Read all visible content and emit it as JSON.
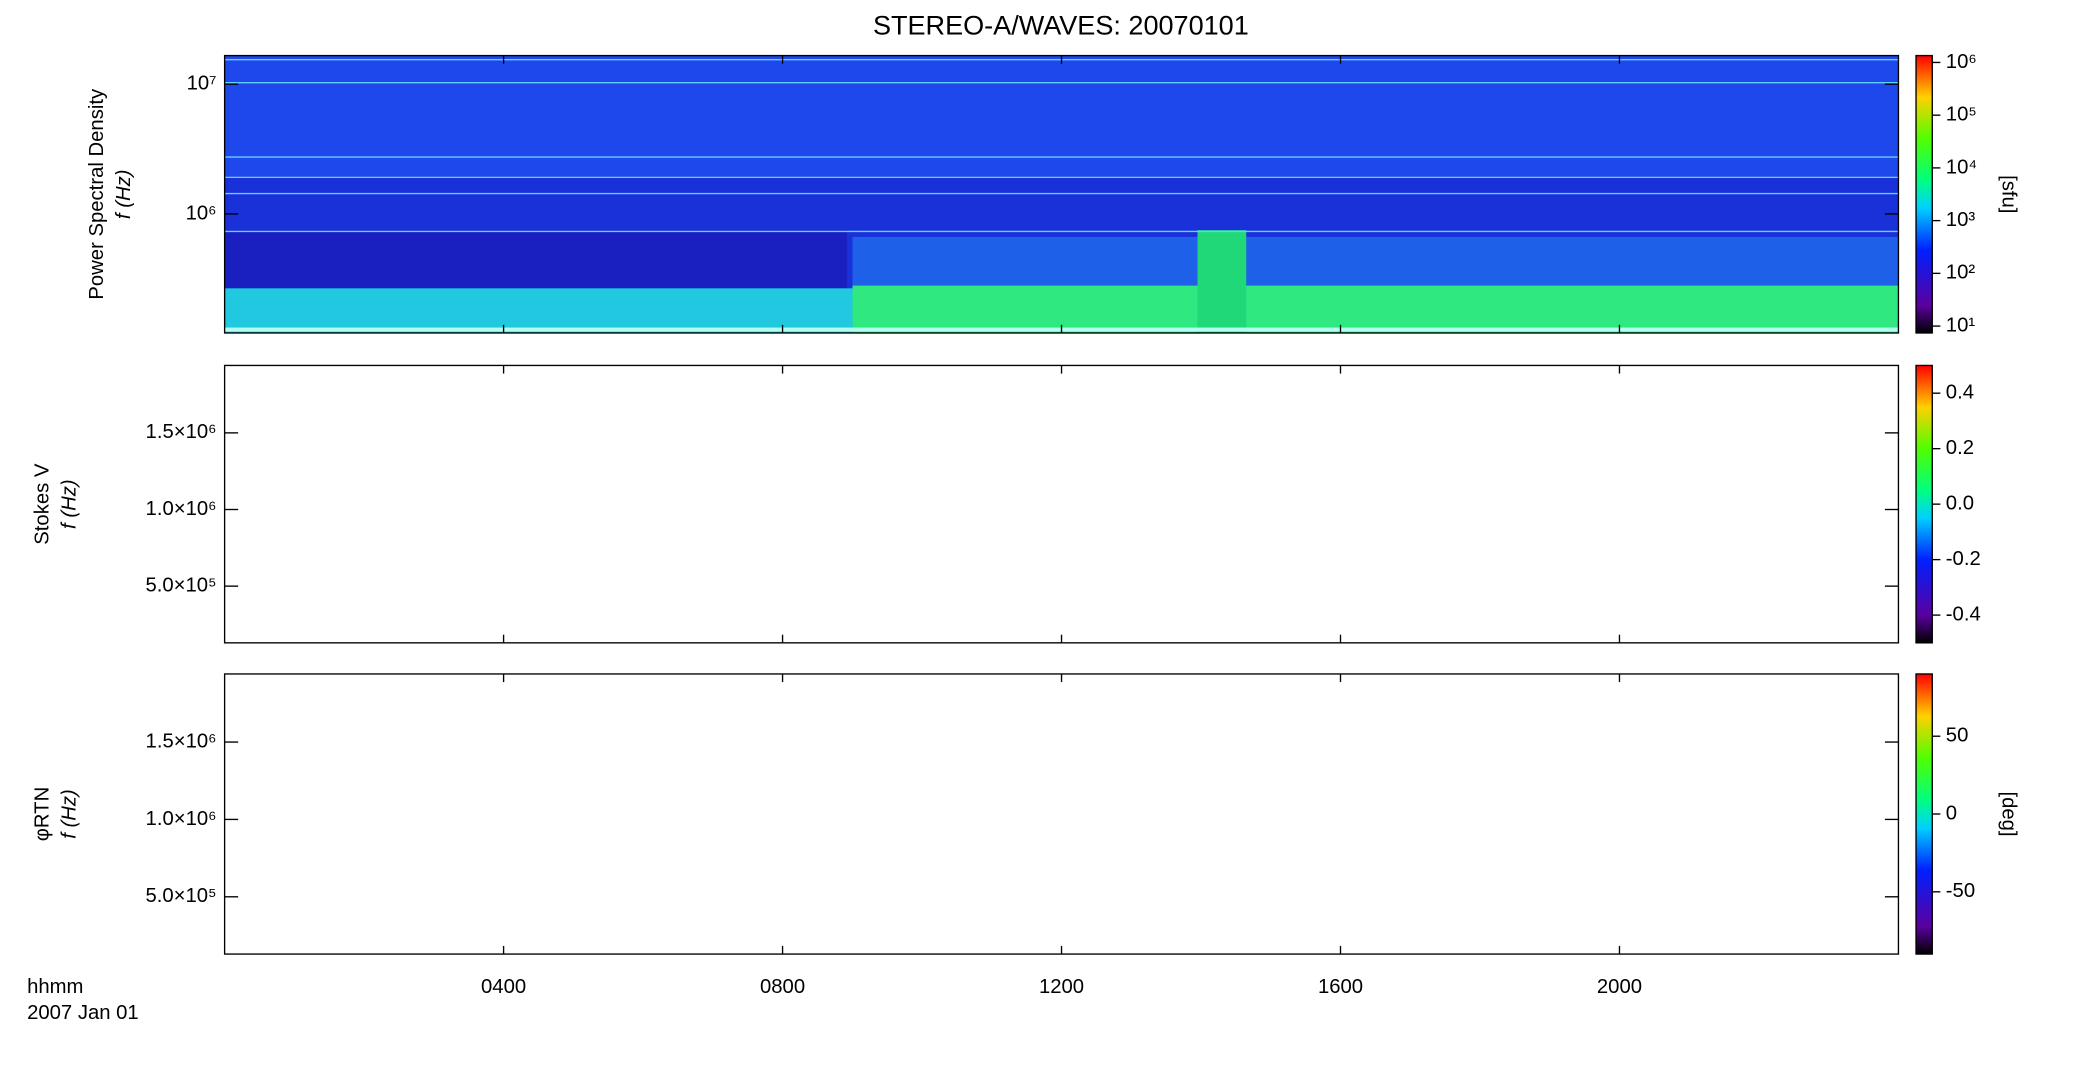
{
  "title": "STEREO-A/WAVES: 20070101",
  "x_label": "hhmm",
  "date_label": "2007 Jan 01",
  "chart_data": [
    {
      "type": "spectrogram",
      "ylabel": [
        "Power Spectral Density",
        "f (Hz)"
      ],
      "log_y": true,
      "ylim": [
        121000,
        16600000
      ],
      "yticks": [
        {
          "value": 1000000,
          "label": "10⁶"
        },
        {
          "value": 10000000,
          "label": "10⁷"
        }
      ],
      "colorbar": {
        "log": true,
        "clim": [
          7.4,
          1350000
        ],
        "label": "[sfu]",
        "ticks": [
          {
            "value": 10,
            "label": "10¹"
          },
          {
            "value": 100,
            "label": "10²"
          },
          {
            "value": 1000,
            "label": "10³"
          },
          {
            "value": 10000,
            "label": "10⁴"
          },
          {
            "value": 100000,
            "label": "10⁵"
          },
          {
            "value": 1000000,
            "label": "10⁶"
          }
        ]
      }
    },
    {
      "type": "spectrogram",
      "ylabel": [
        "Stokes V",
        "f (Hz)"
      ],
      "log_y": false,
      "ylim": [
        130000,
        1940000
      ],
      "yticks": [
        {
          "value": 500000,
          "label": "5.0×10⁵"
        },
        {
          "value": 1000000,
          "label": "1.0×10⁶"
        },
        {
          "value": 1500000,
          "label": "1.5×10⁶"
        }
      ],
      "colorbar": {
        "log": false,
        "clim": [
          -0.5,
          0.5
        ],
        "ticks": [
          -0.4,
          -0.2,
          {
            "value": 0,
            "label": "0.0"
          },
          0.2,
          0.4
        ]
      }
    },
    {
      "type": "spectrogram",
      "ylabel": [
        "φRTN",
        "f (Hz)"
      ],
      "log_y": false,
      "ylim": [
        130000,
        1940000
      ],
      "yticks": [
        {
          "value": 500000,
          "label": "5.0×10⁵"
        },
        {
          "value": 1000000,
          "label": "1.0×10⁶"
        },
        {
          "value": 1500000,
          "label": "1.5×10⁶"
        }
      ],
      "colorbar": {
        "log": false,
        "clim": [
          -90,
          90
        ],
        "label": "[deg]",
        "ticks": [
          -50,
          0,
          50
        ]
      },
      "xlim": [
        0,
        24
      ],
      "xticks": [
        {
          "value": 4,
          "label": "0400"
        },
        {
          "value": 8,
          "label": "0800"
        },
        {
          "value": 12,
          "label": "1200"
        },
        {
          "value": 16,
          "label": "1600"
        },
        {
          "value": 20,
          "label": "2000"
        }
      ]
    }
  ]
}
